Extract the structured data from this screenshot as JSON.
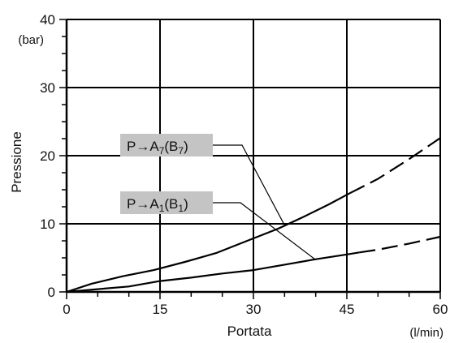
{
  "chart_data": {
    "type": "line",
    "title": "",
    "xlabel": "Portata",
    "xunit": "(l/min)",
    "ylabel": "Pressione",
    "yunit": "(bar)",
    "xlim": [
      0,
      60
    ],
    "ylim": [
      0,
      40
    ],
    "x_ticks": [
      "0",
      "15",
      "30",
      "45",
      "60"
    ],
    "y_ticks": [
      "0",
      "10",
      "20",
      "30",
      "40"
    ],
    "grid": true,
    "series": [
      {
        "label": {
          "main": "P→A",
          "sub1": "7",
          "mid": "(B",
          "sub2": "7",
          "end": ")"
        },
        "solid": [
          [
            0,
            0
          ],
          [
            4,
            1.2
          ],
          [
            9,
            2.3
          ],
          [
            14,
            3.2
          ],
          [
            19,
            4.4
          ],
          [
            24,
            5.7
          ],
          [
            29,
            7.5
          ],
          [
            34,
            9.3
          ],
          [
            38,
            11.0
          ],
          [
            42,
            12.8
          ],
          [
            45.5,
            14.5
          ]
        ],
        "dashed": [
          [
            45.5,
            14.5
          ],
          [
            50,
            16.6
          ],
          [
            55,
            19.5
          ],
          [
            60,
            22.6
          ]
        ]
      },
      {
        "label": {
          "main": "P→A",
          "sub1": "1",
          "mid": "(B",
          "sub2": "1",
          "end": ")"
        },
        "solid": [
          [
            0,
            0
          ],
          [
            5,
            0.4
          ],
          [
            10,
            0.8
          ],
          [
            15,
            1.6
          ],
          [
            20,
            2.1
          ],
          [
            25,
            2.7
          ],
          [
            30,
            3.2
          ],
          [
            35,
            4.0
          ],
          [
            40,
            4.8
          ],
          [
            45,
            5.5
          ],
          [
            47,
            5.8
          ]
        ],
        "dashed": [
          [
            47,
            5.8
          ],
          [
            50,
            6.2
          ],
          [
            55,
            7.1
          ],
          [
            60,
            8.1
          ]
        ]
      }
    ]
  }
}
